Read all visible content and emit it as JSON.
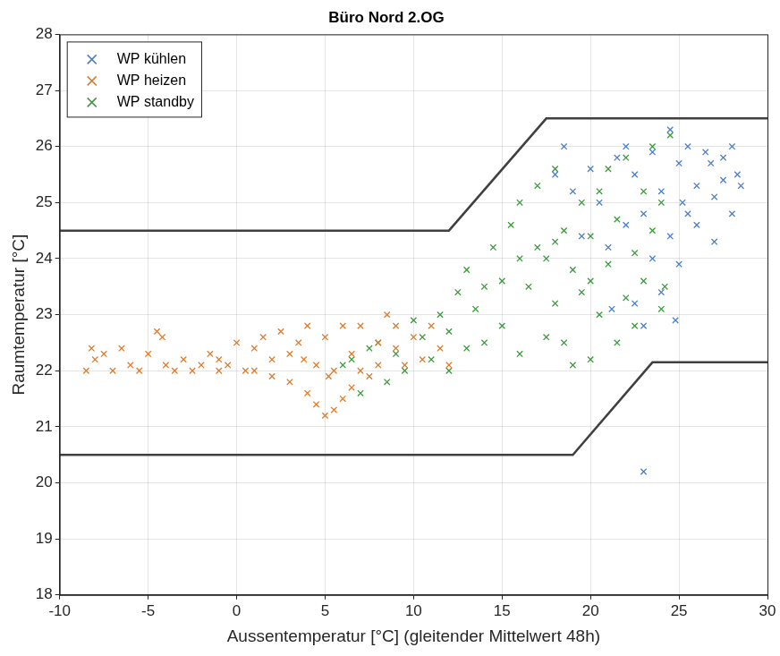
{
  "chart_data": {
    "type": "scatter",
    "title": "Büro Nord 2.OG",
    "x_label": "Aussentemperatur [°C] (gleitender Mittelwert 48h)",
    "y_label": "Raumtemperatur [°C]",
    "xlim": [
      -10,
      30
    ],
    "xticks": [
      -10,
      -5,
      0,
      5,
      10,
      15,
      20,
      25,
      30
    ],
    "ylim": [
      18,
      28
    ],
    "yticks": [
      18,
      19,
      20,
      21,
      22,
      23,
      24,
      25,
      26,
      27,
      28
    ],
    "grid": true,
    "legend": "upper left",
    "marker": "x",
    "series": [
      {
        "name": "WP kühlen",
        "color": "#4a7fcc",
        "x": [
          18,
          18.5,
          19,
          20,
          20.5,
          21,
          21.5,
          22,
          22,
          22.5,
          22.5,
          23,
          23,
          23,
          23.5,
          23.5,
          24,
          24,
          24.5,
          24.5,
          25,
          25,
          25.5,
          25.5,
          26,
          26,
          26.5,
          27,
          27,
          27.5,
          27.5,
          28,
          28,
          28.3,
          28.5,
          26.8,
          25.2,
          24.8,
          21.2,
          19.5
        ],
        "values": [
          25.5,
          26.0,
          25.2,
          25.6,
          25.0,
          24.2,
          25.8,
          24.6,
          26.0,
          23.2,
          25.5,
          22.8,
          24.8,
          20.2,
          25.9,
          24.0,
          23.4,
          25.2,
          26.3,
          24.4,
          25.7,
          23.9,
          24.8,
          26.0,
          25.3,
          24.6,
          25.9,
          25.1,
          24.3,
          25.8,
          25.4,
          26.0,
          24.8,
          25.5,
          25.3,
          25.7,
          25.0,
          22.9,
          23.1,
          24.4
        ]
      },
      {
        "name": "WP heizen",
        "color": "#e07b2a",
        "x": [
          -8.5,
          -8.2,
          -8,
          -7.5,
          -7,
          -6.5,
          -6,
          -5.5,
          -5,
          -4.5,
          -4.2,
          -4,
          -3.5,
          -3,
          -2.5,
          -2,
          -1.5,
          -1,
          -0.5,
          0,
          0.5,
          1,
          1.5,
          2,
          2.5,
          3,
          3,
          3.5,
          4,
          4,
          4.5,
          4.5,
          5,
          5,
          5.5,
          5.5,
          6,
          6,
          6.5,
          6.5,
          7,
          7,
          7.5,
          8,
          8,
          8.5,
          9,
          9,
          9.5,
          10,
          10.5,
          11,
          11.5,
          12,
          2,
          1,
          -1,
          3.8,
          5.2
        ],
        "values": [
          22.0,
          22.4,
          22.2,
          22.3,
          22.0,
          22.4,
          22.1,
          22.0,
          22.3,
          22.7,
          22.6,
          22.1,
          22.0,
          22.2,
          22.0,
          22.1,
          22.3,
          22.2,
          22.1,
          22.5,
          22.0,
          22.4,
          22.6,
          22.2,
          22.7,
          22.3,
          21.8,
          22.5,
          21.6,
          22.8,
          21.4,
          22.1,
          21.2,
          22.6,
          21.3,
          22.0,
          21.5,
          22.8,
          21.7,
          22.3,
          22.0,
          22.8,
          21.9,
          22.5,
          22.1,
          23.0,
          22.4,
          22.8,
          22.1,
          22.6,
          22.2,
          22.8,
          22.4,
          22.1,
          21.9,
          22.0,
          22.0,
          22.2,
          21.9
        ]
      },
      {
        "name": "WP standby",
        "color": "#3c9a3c",
        "x": [
          6,
          6.5,
          7,
          7.5,
          8,
          8.5,
          9,
          9.5,
          10,
          10.5,
          11,
          11.5,
          12,
          12.5,
          13,
          13,
          13.5,
          14,
          14,
          14.5,
          15,
          15,
          15.5,
          16,
          16,
          16.5,
          17,
          17,
          17.5,
          17.5,
          18,
          18,
          18.5,
          18.5,
          19,
          19,
          19.5,
          19.5,
          20,
          20,
          20.5,
          20.5,
          21,
          21,
          21.5,
          21.5,
          22,
          22,
          22.5,
          22.5,
          23,
          23,
          23.5,
          23.5,
          24,
          24,
          24.5,
          24.2,
          16,
          20,
          18,
          12
        ],
        "values": [
          22.1,
          22.2,
          21.6,
          22.4,
          22.5,
          21.8,
          22.3,
          22.0,
          22.9,
          22.6,
          22.2,
          23.0,
          22.7,
          23.4,
          22.4,
          23.8,
          23.1,
          23.5,
          22.5,
          24.2,
          22.8,
          23.6,
          24.6,
          22.3,
          25.0,
          23.5,
          24.2,
          25.3,
          22.6,
          24.0,
          23.2,
          25.6,
          22.5,
          24.5,
          23.8,
          22.1,
          25.0,
          23.4,
          22.2,
          24.4,
          25.2,
          23.0,
          23.9,
          25.6,
          22.5,
          24.7,
          23.3,
          25.8,
          24.1,
          22.8,
          25.2,
          23.6,
          24.5,
          26.0,
          23.1,
          25.0,
          26.2,
          23.5,
          24.0,
          23.6,
          24.3,
          22.0
        ]
      }
    ],
    "lines": [
      {
        "color": "#404040",
        "line_style": "solid",
        "x": [
          -10,
          12,
          17.5,
          30
        ],
        "values": [
          24.5,
          24.5,
          26.5,
          26.5
        ]
      },
      {
        "color": "#404040",
        "line_style": "solid",
        "x": [
          -10,
          19,
          23.5,
          30
        ],
        "values": [
          20.5,
          20.5,
          22.15,
          22.15
        ]
      }
    ]
  }
}
